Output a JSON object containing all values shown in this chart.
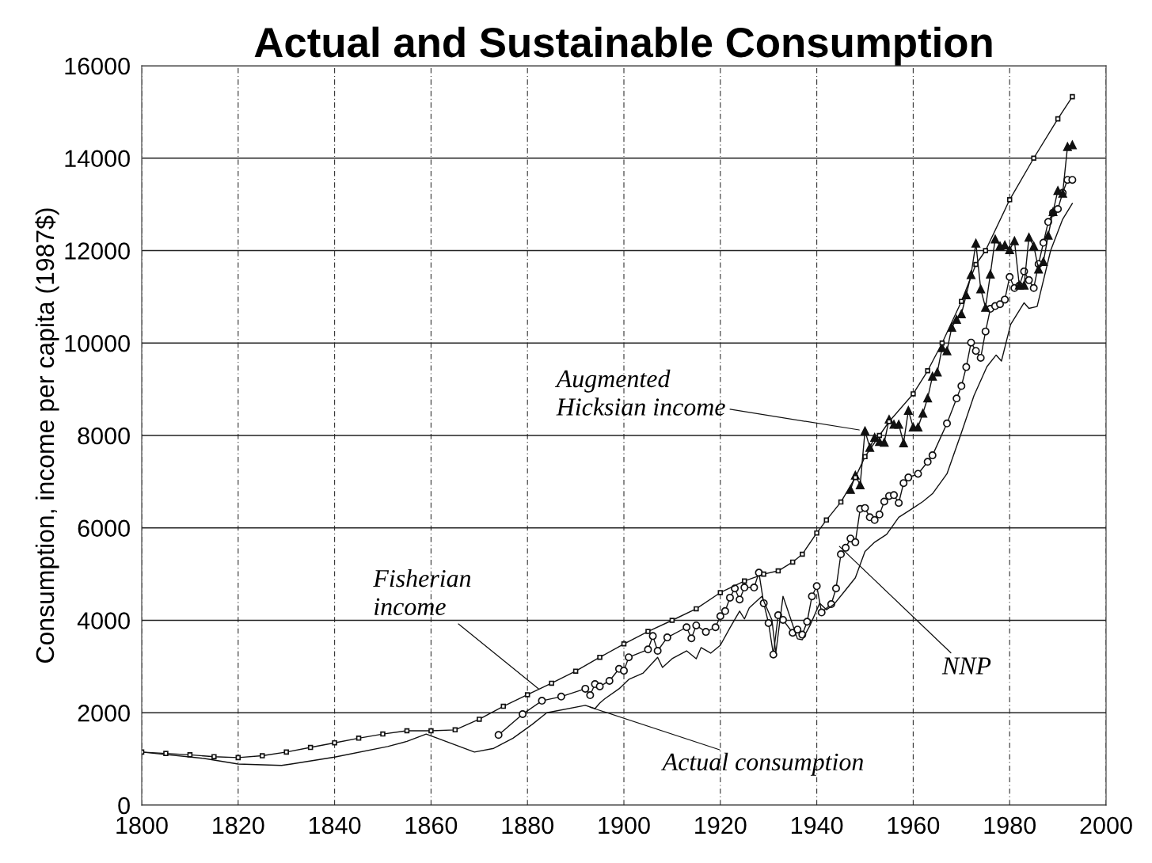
{
  "chart_data": {
    "type": "line",
    "title": "Actual and Sustainable Consumption",
    "ylabel": "Consumption, income per capita (1987$)",
    "xlim": [
      1800,
      2000
    ],
    "xticks": [
      1800,
      1820,
      1840,
      1860,
      1880,
      1900,
      1920,
      1940,
      1960,
      1980,
      2000
    ],
    "ylim": [
      0,
      16000
    ],
    "yticks": [
      0,
      2000,
      4000,
      6000,
      8000,
      10000,
      12000,
      14000,
      16000
    ],
    "grid": true,
    "legend": false,
    "series": [
      {
        "color": "#111111",
        "marker": "square",
        "x": [
          1800,
          1805,
          1810,
          1815,
          1820,
          1825,
          1830,
          1835,
          1840,
          1845,
          1850,
          1855,
          1860,
          1865,
          1870,
          1875,
          1880,
          1885,
          1890,
          1895,
          1900,
          1905,
          1910,
          1915,
          1920,
          1925,
          1929,
          1932,
          1935,
          1937,
          1940,
          1942,
          1945,
          1948,
          1950,
          1953,
          1955,
          1960,
          1963,
          1966,
          1970,
          1973,
          1975,
          1980,
          1985,
          1990,
          1993
        ],
        "values": [
          1150,
          1120,
          1090,
          1050,
          1030,
          1070,
          1150,
          1250,
          1350,
          1450,
          1540,
          1610,
          1610,
          1630,
          1860,
          2140,
          2390,
          2640,
          2900,
          3200,
          3490,
          3760,
          4000,
          4250,
          4600,
          4850,
          5000,
          5070,
          5260,
          5430,
          5890,
          6170,
          6560,
          7090,
          7540,
          8000,
          8300,
          8900,
          9400,
          10000,
          10900,
          11700,
          12000,
          13100,
          14000,
          14850,
          15330
        ]
      },
      {
        "color": "#111111",
        "marker": "circle",
        "x": [
          1874,
          1879,
          1883,
          1887,
          1892,
          1893,
          1894,
          1895,
          1897,
          1899,
          1900,
          1901,
          1905,
          1906,
          1907,
          1909,
          1913,
          1914,
          1915,
          1917,
          1919,
          1920,
          1921,
          1922,
          1923,
          1924,
          1925,
          1927,
          1928,
          1929,
          1930,
          1931,
          1932,
          1933,
          1935,
          1936,
          1937,
          1938,
          1939,
          1940,
          1941,
          1943,
          1944,
          1945,
          1946,
          1947,
          1948,
          1949,
          1950,
          1951,
          1952,
          1953,
          1954,
          1955,
          1956,
          1957,
          1958,
          1959,
          1961,
          1963,
          1964,
          1967,
          1969,
          1970,
          1971,
          1972,
          1973,
          1974,
          1975,
          1976,
          1977,
          1978,
          1979,
          1980,
          1981,
          1982,
          1983,
          1984,
          1985,
          1986,
          1987,
          1988,
          1989,
          1990,
          1991,
          1992,
          1993
        ],
        "values": [
          1520,
          1970,
          2260,
          2350,
          2520,
          2380,
          2620,
          2570,
          2690,
          2950,
          2910,
          3200,
          3370,
          3660,
          3340,
          3630,
          3850,
          3610,
          3890,
          3750,
          3850,
          4090,
          4200,
          4490,
          4690,
          4450,
          4710,
          4710,
          5030,
          4370,
          3940,
          3260,
          4110,
          4010,
          3730,
          3800,
          3690,
          3970,
          4520,
          4740,
          4170,
          4350,
          4690,
          5430,
          5570,
          5770,
          5690,
          6410,
          6430,
          6230,
          6170,
          6290,
          6570,
          6690,
          6710,
          6540,
          6970,
          7090,
          7170,
          7430,
          7570,
          8260,
          8800,
          9070,
          9480,
          10010,
          9830,
          9680,
          10250,
          10740,
          10800,
          10840,
          10940,
          11430,
          11190,
          11240,
          11550,
          11360,
          11190,
          11710,
          12170,
          12620,
          12820,
          12900,
          13250,
          13530,
          13530
        ]
      },
      {
        "color": "#111111",
        "marker": "triangle",
        "x": [
          1947,
          1948,
          1949,
          1950,
          1951,
          1952,
          1953,
          1954,
          1955,
          1956,
          1957,
          1958,
          1959,
          1960,
          1961,
          1962,
          1963,
          1964,
          1965,
          1966,
          1967,
          1968,
          1969,
          1970,
          1971,
          1972,
          1973,
          1974,
          1975,
          1976,
          1977,
          1978,
          1979,
          1980,
          1981,
          1982,
          1983,
          1984,
          1985,
          1986,
          1987,
          1988,
          1989,
          1990,
          1991,
          1992,
          1993
        ],
        "values": [
          6830,
          7140,
          6930,
          8100,
          7740,
          7960,
          7870,
          7850,
          8350,
          8240,
          8240,
          7840,
          8540,
          8180,
          8180,
          8480,
          8810,
          9280,
          9370,
          9900,
          9830,
          10340,
          10510,
          10630,
          11040,
          11480,
          12160,
          11170,
          10770,
          11490,
          12250,
          12100,
          12120,
          12020,
          12210,
          11250,
          11250,
          12290,
          12100,
          11600,
          11760,
          12330,
          12840,
          13300,
          13240,
          14250,
          14290
        ]
      },
      {
        "color": "#111111",
        "marker": "none",
        "x": [
          1800,
          1813,
          1820,
          1829,
          1831,
          1840,
          1851,
          1855,
          1859,
          1869,
          1873,
          1877,
          1881,
          1884,
          1892,
          1894,
          1895,
          1896,
          1899,
          1901,
          1904,
          1907,
          1908,
          1910,
          1913,
          1915,
          1916,
          1918,
          1920,
          1922,
          1924,
          1925,
          1926,
          1928.6,
          1929.4,
          1930.7,
          1931.5,
          1933,
          1936,
          1937,
          1938.6,
          1940.6,
          1942,
          1943.6,
          1946,
          1948,
          1950,
          1952,
          1954.5,
          1957,
          1960,
          1962,
          1964,
          1967,
          1970,
          1972.6,
          1975.3,
          1977.2,
          1978.3,
          1980.2,
          1983,
          1984,
          1985.7,
          1988.5,
          1991,
          1993
        ],
        "values": [
          1150,
          1010,
          890,
          860,
          890,
          1040,
          1270,
          1380,
          1540,
          1150,
          1230,
          1450,
          1750,
          2000,
          2160,
          2090,
          2210,
          2300,
          2520,
          2720,
          2860,
          3200,
          2980,
          3170,
          3340,
          3170,
          3410,
          3290,
          3460,
          3840,
          4200,
          4030,
          4270,
          4520,
          4320,
          4010,
          3290,
          4520,
          3600,
          3580,
          3890,
          4370,
          4230,
          4350,
          4660,
          4920,
          5490,
          5690,
          5860,
          6230,
          6430,
          6570,
          6740,
          7170,
          8060,
          8860,
          9490,
          9740,
          9610,
          10400,
          10870,
          10750,
          10790,
          12000,
          12680,
          13020
        ]
      }
    ],
    "annotations": [
      {
        "text": "Augmented\nHicksian income",
        "x": 1948.8,
        "y": 8120
      },
      {
        "text": "Fisherian\nincome",
        "x": 1882.3,
        "y": 2520
      },
      {
        "text": "Actual consumption",
        "x": 1893,
        "y": 2120
      },
      {
        "text": "NNP",
        "x": 1944.7,
        "y": 5600
      }
    ]
  }
}
